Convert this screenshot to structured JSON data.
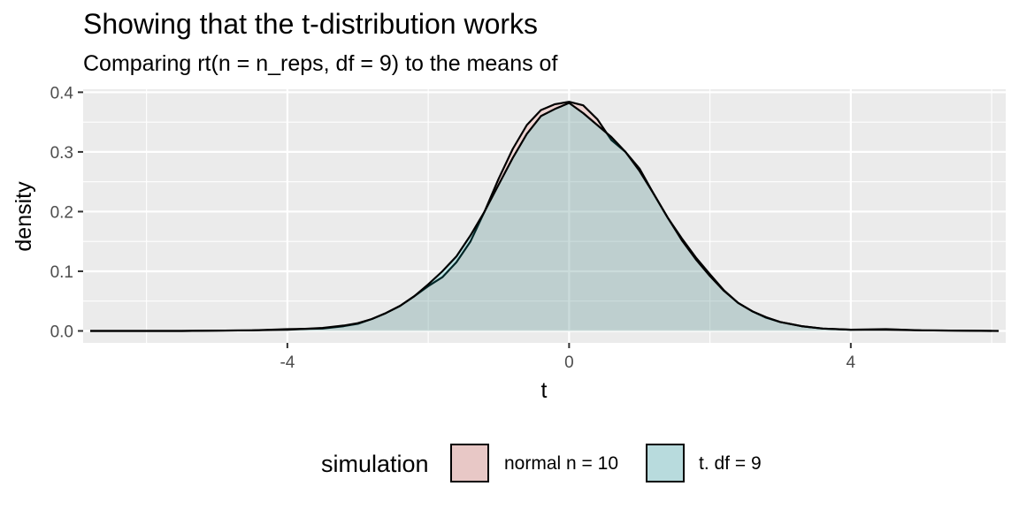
{
  "chart_data": {
    "type": "area",
    "title": "Showing that the t-distribution works",
    "subtitle": "Comparing rt(n = n_reps, df = 9) to the means of",
    "xlabel": "t",
    "ylabel": "density",
    "xlim": [
      -6.9,
      6.2
    ],
    "ylim": [
      -0.02,
      0.405
    ],
    "x_ticks": [
      -4,
      0,
      4
    ],
    "x_tick_labels": [
      "-4",
      "0",
      "4"
    ],
    "x_minor_ticks": [
      -6,
      -2,
      2,
      6
    ],
    "y_ticks": [
      0.0,
      0.1,
      0.2,
      0.3,
      0.4
    ],
    "y_tick_labels": [
      "0.0",
      "0.1",
      "0.2",
      "0.3",
      "0.4"
    ],
    "grid": true,
    "legend": {
      "position": "bottom",
      "title": "simulation",
      "entries": [
        {
          "label": "normal n = 10",
          "color": "#e8c8c6"
        },
        {
          "label": "t. df = 9",
          "color": "#b8dbdd"
        }
      ]
    },
    "series": [
      {
        "name": "normal n = 10",
        "color": "#F8766D",
        "points": [
          [
            -6.8,
            0.0
          ],
          [
            -5.5,
            0.0
          ],
          [
            -4.5,
            0.001
          ],
          [
            -4.0,
            0.003
          ],
          [
            -3.5,
            0.004
          ],
          [
            -3.2,
            0.008
          ],
          [
            -3.0,
            0.012
          ],
          [
            -2.8,
            0.02
          ],
          [
            -2.6,
            0.03
          ],
          [
            -2.4,
            0.042
          ],
          [
            -2.2,
            0.058
          ],
          [
            -2.0,
            0.075
          ],
          [
            -1.8,
            0.09
          ],
          [
            -1.6,
            0.115
          ],
          [
            -1.4,
            0.15
          ],
          [
            -1.2,
            0.2
          ],
          [
            -1.0,
            0.255
          ],
          [
            -0.8,
            0.305
          ],
          [
            -0.6,
            0.345
          ],
          [
            -0.4,
            0.37
          ],
          [
            -0.2,
            0.38
          ],
          [
            0.0,
            0.384
          ],
          [
            0.2,
            0.378
          ],
          [
            0.4,
            0.355
          ],
          [
            0.6,
            0.32
          ],
          [
            0.8,
            0.3
          ],
          [
            1.0,
            0.272
          ],
          [
            1.2,
            0.23
          ],
          [
            1.4,
            0.19
          ],
          [
            1.6,
            0.155
          ],
          [
            1.8,
            0.123
          ],
          [
            2.0,
            0.095
          ],
          [
            2.2,
            0.068
          ],
          [
            2.4,
            0.047
          ],
          [
            2.6,
            0.033
          ],
          [
            2.8,
            0.022
          ],
          [
            3.0,
            0.015
          ],
          [
            3.3,
            0.008
          ],
          [
            3.6,
            0.004
          ],
          [
            4.0,
            0.002
          ],
          [
            4.5,
            0.003
          ],
          [
            5.0,
            0.001
          ],
          [
            6.0,
            0.0
          ]
        ]
      },
      {
        "name": "t. df = 9",
        "color": "#00BFC4",
        "points": [
          [
            -6.8,
            0.0
          ],
          [
            -5.5,
            0.0
          ],
          [
            -4.5,
            0.001
          ],
          [
            -4.0,
            0.002
          ],
          [
            -3.5,
            0.005
          ],
          [
            -3.2,
            0.009
          ],
          [
            -3.0,
            0.013
          ],
          [
            -2.8,
            0.02
          ],
          [
            -2.6,
            0.03
          ],
          [
            -2.4,
            0.042
          ],
          [
            -2.2,
            0.058
          ],
          [
            -2.0,
            0.078
          ],
          [
            -1.8,
            0.1
          ],
          [
            -1.6,
            0.125
          ],
          [
            -1.4,
            0.16
          ],
          [
            -1.2,
            0.2
          ],
          [
            -1.0,
            0.245
          ],
          [
            -0.8,
            0.29
          ],
          [
            -0.6,
            0.33
          ],
          [
            -0.4,
            0.36
          ],
          [
            -0.2,
            0.372
          ],
          [
            0.0,
            0.382
          ],
          [
            0.2,
            0.365
          ],
          [
            0.4,
            0.345
          ],
          [
            0.6,
            0.325
          ],
          [
            0.8,
            0.3
          ],
          [
            1.0,
            0.268
          ],
          [
            1.2,
            0.23
          ],
          [
            1.4,
            0.19
          ],
          [
            1.6,
            0.152
          ],
          [
            1.8,
            0.12
          ],
          [
            2.0,
            0.092
          ],
          [
            2.2,
            0.067
          ],
          [
            2.4,
            0.047
          ],
          [
            2.6,
            0.033
          ],
          [
            2.8,
            0.023
          ],
          [
            3.0,
            0.015
          ],
          [
            3.3,
            0.008
          ],
          [
            3.6,
            0.004
          ],
          [
            4.0,
            0.002
          ],
          [
            4.5,
            0.002
          ],
          [
            5.0,
            0.001
          ],
          [
            6.1,
            0.0
          ]
        ]
      }
    ]
  }
}
